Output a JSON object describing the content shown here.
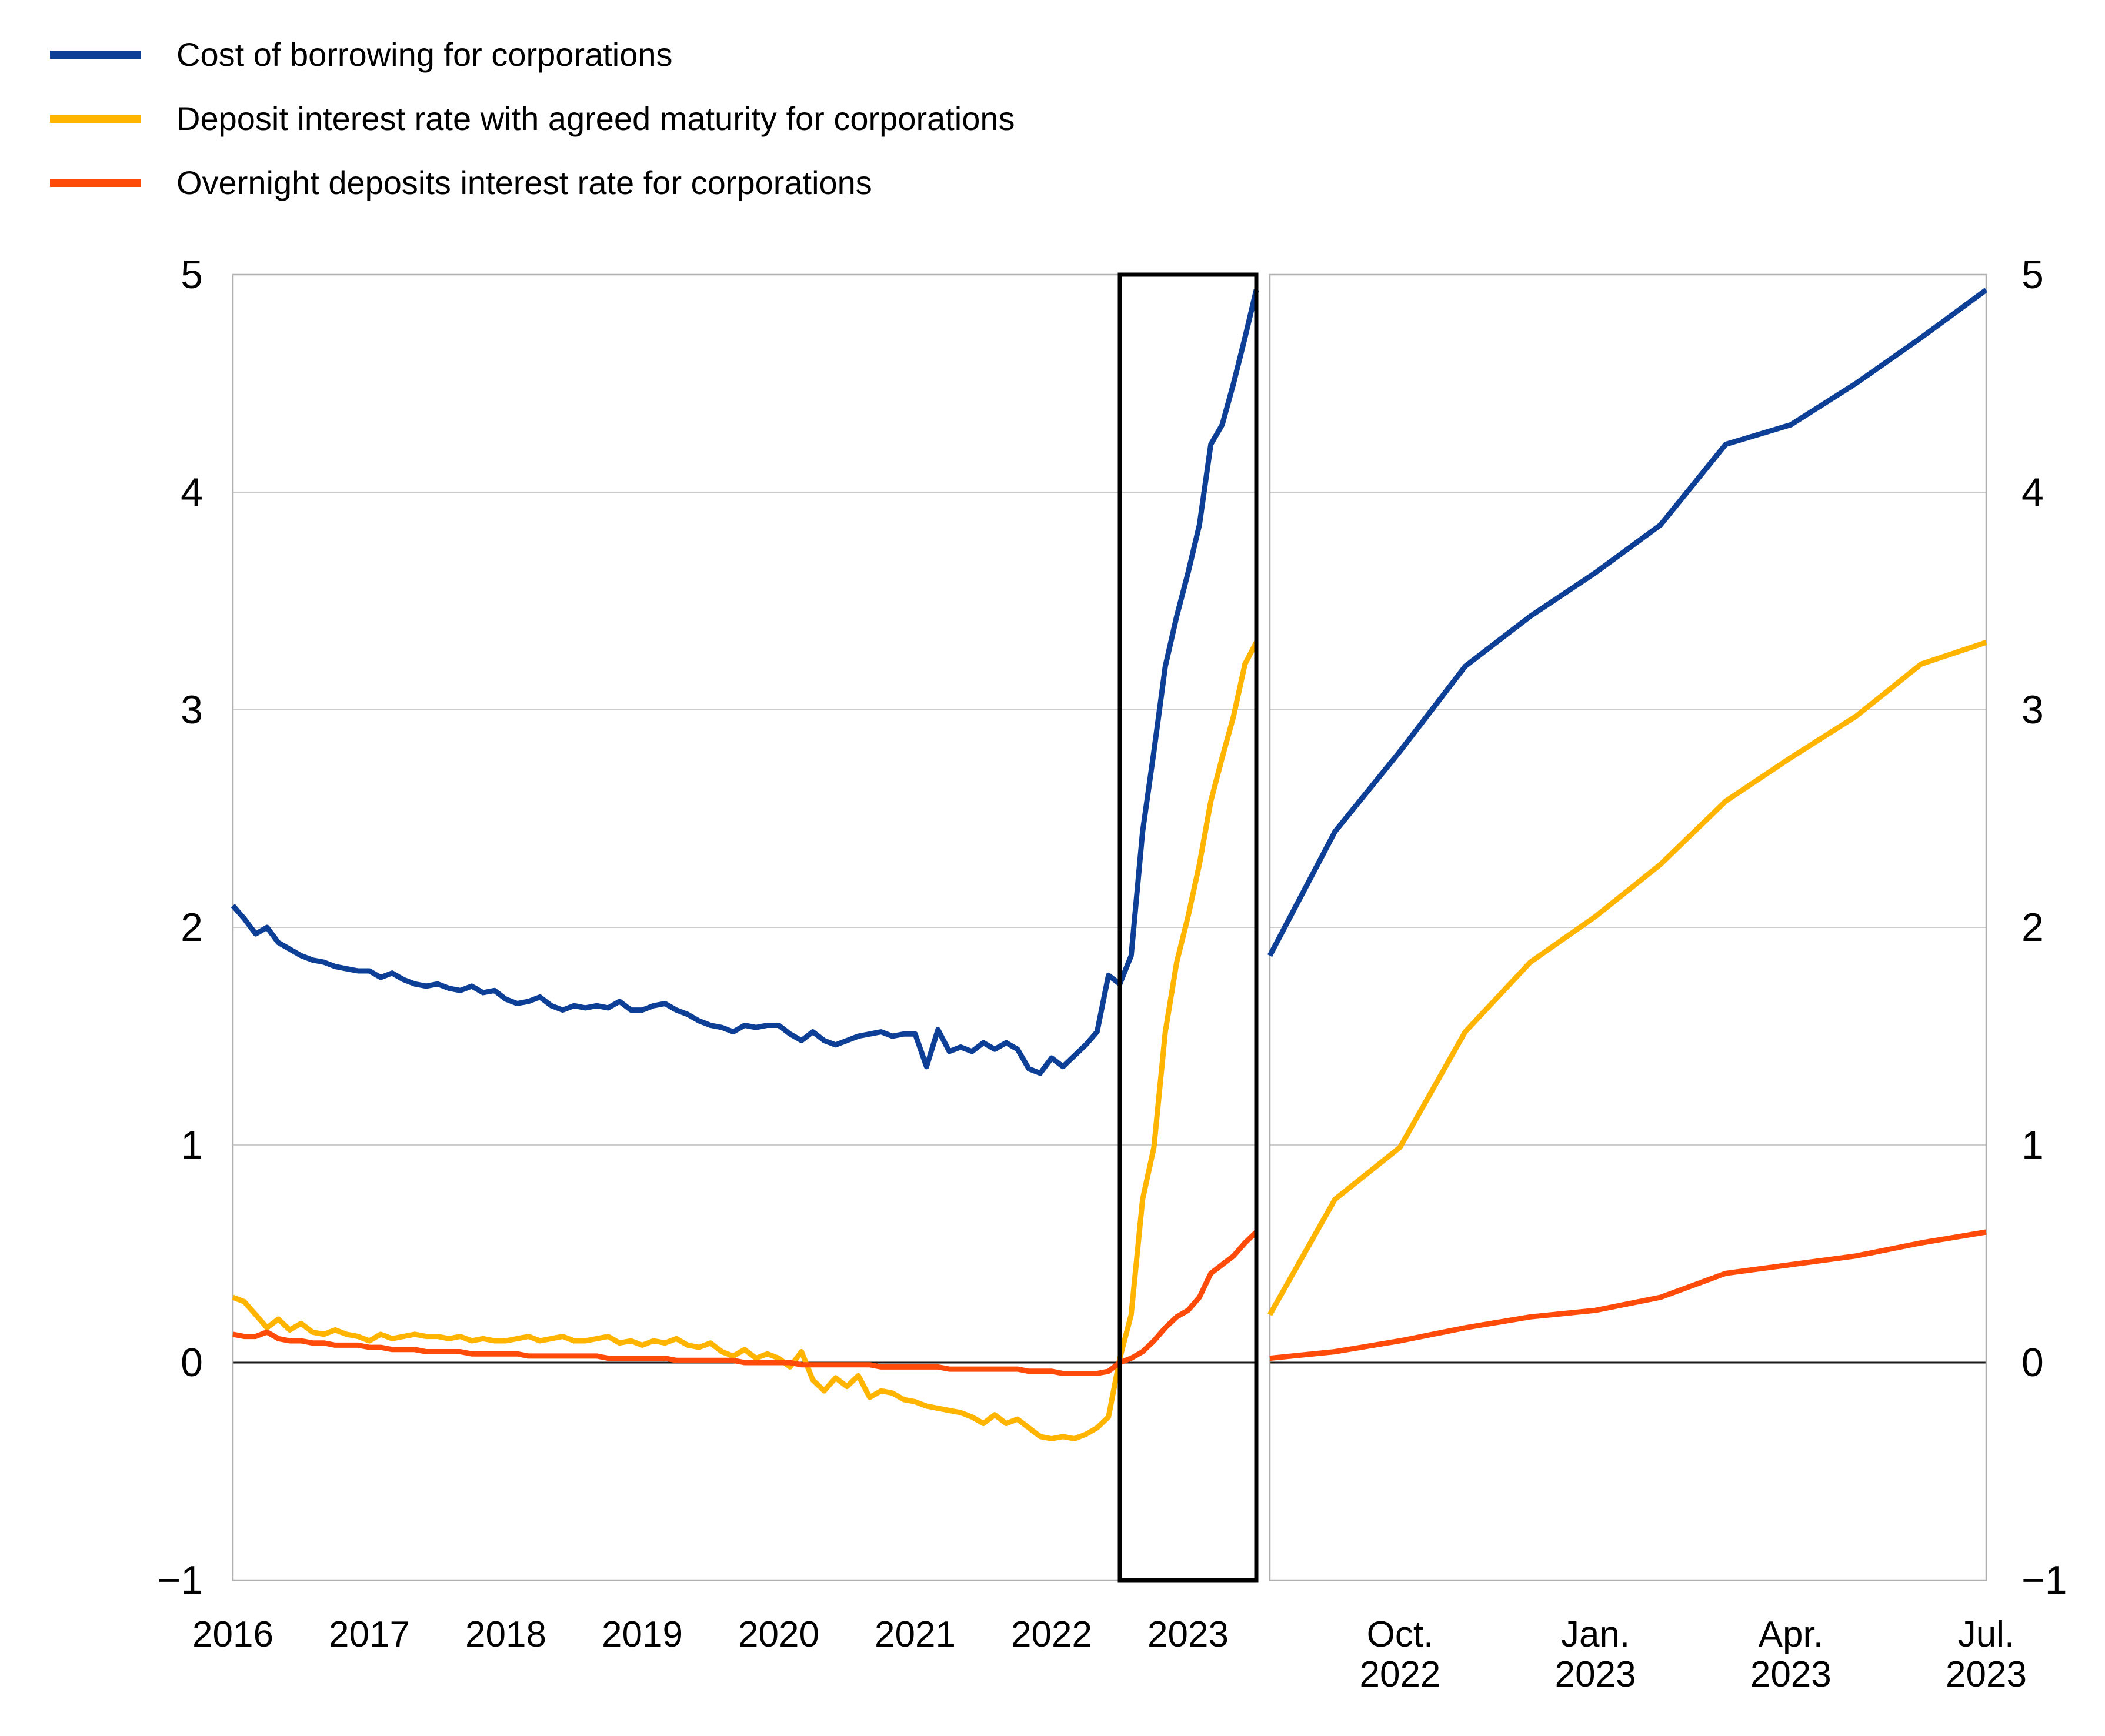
{
  "figure": {
    "kind": "two-panel line chart with zoom highlight",
    "background_color": "#ffffff",
    "text_color": "#000000",
    "gridline_color": "#cccccc",
    "panel_border_color": "#b0b0b0",
    "zero_line_color": "#1a1a1a",
    "highlight_box_color": "#000000"
  },
  "y_axis": {
    "min": -1,
    "max": 5,
    "tick_labels": [
      "5",
      "4",
      "3",
      "2",
      "1",
      "0",
      "−1"
    ],
    "tick_values": [
      5,
      4,
      3,
      2,
      1,
      0,
      -1
    ]
  },
  "chart_data": [
    {
      "panel": "left",
      "type": "line",
      "x_start": "2016-01",
      "x_end": "2023-07",
      "frequency": "monthly",
      "n_points": 91,
      "x_tick_labels": [
        "2016",
        "2017",
        "2018",
        "2019",
        "2020",
        "2021",
        "2022",
        "2023"
      ],
      "x_tick_month_index": [
        0,
        12,
        24,
        36,
        48,
        60,
        72,
        84
      ],
      "ylim": [
        -1,
        5
      ],
      "grid": "horizontal integers, zero line darker",
      "legend_position": "top-left above chart",
      "highlight_box": {
        "from": "2022-07",
        "to": "2023-07",
        "note": "black rectangle marking region magnified in right panel"
      },
      "series": [
        {
          "id": "cost-of-borrowing",
          "name": "Cost of borrowing for corporations",
          "color": "#0d3f97",
          "values": [
            2.1,
            2.04,
            1.97,
            2.0,
            1.93,
            1.9,
            1.87,
            1.85,
            1.84,
            1.82,
            1.81,
            1.8,
            1.8,
            1.77,
            1.79,
            1.76,
            1.74,
            1.73,
            1.74,
            1.72,
            1.71,
            1.73,
            1.7,
            1.71,
            1.67,
            1.65,
            1.66,
            1.68,
            1.64,
            1.62,
            1.64,
            1.63,
            1.64,
            1.63,
            1.66,
            1.62,
            1.62,
            1.64,
            1.65,
            1.62,
            1.6,
            1.57,
            1.55,
            1.54,
            1.52,
            1.55,
            1.54,
            1.55,
            1.55,
            1.51,
            1.48,
            1.52,
            1.48,
            1.46,
            1.48,
            1.5,
            1.51,
            1.52,
            1.5,
            1.51,
            1.51,
            1.36,
            1.53,
            1.43,
            1.45,
            1.43,
            1.47,
            1.44,
            1.47,
            1.44,
            1.35,
            1.33,
            1.4,
            1.36,
            1.41,
            1.46,
            1.52,
            1.78,
            1.74,
            1.87,
            2.44,
            2.81,
            3.2,
            3.43,
            3.63,
            3.85,
            4.22,
            4.31,
            4.5,
            4.71,
            4.93
          ]
        },
        {
          "id": "deposit-agreed-maturity",
          "name": "Deposit interest rate with agreed maturity for corporations",
          "color": "#ffb400",
          "values": [
            0.3,
            0.28,
            0.22,
            0.16,
            0.2,
            0.15,
            0.18,
            0.14,
            0.13,
            0.15,
            0.13,
            0.12,
            0.1,
            0.13,
            0.11,
            0.12,
            0.13,
            0.12,
            0.12,
            0.11,
            0.12,
            0.1,
            0.11,
            0.1,
            0.1,
            0.11,
            0.12,
            0.1,
            0.11,
            0.12,
            0.1,
            0.1,
            0.11,
            0.12,
            0.09,
            0.1,
            0.08,
            0.1,
            0.09,
            0.11,
            0.08,
            0.07,
            0.09,
            0.05,
            0.03,
            0.06,
            0.02,
            0.04,
            0.02,
            -0.02,
            0.05,
            -0.08,
            -0.13,
            -0.07,
            -0.11,
            -0.06,
            -0.16,
            -0.13,
            -0.14,
            -0.17,
            -0.18,
            -0.2,
            -0.21,
            -0.22,
            -0.23,
            -0.25,
            -0.28,
            -0.24,
            -0.28,
            -0.26,
            -0.3,
            -0.34,
            -0.35,
            -0.34,
            -0.35,
            -0.33,
            -0.3,
            -0.25,
            0.02,
            0.22,
            0.75,
            0.99,
            1.52,
            1.84,
            2.05,
            2.29,
            2.58,
            2.78,
            2.97,
            3.21,
            3.31
          ]
        },
        {
          "id": "overnight-deposits",
          "name": "Overnight deposits interest rate for corporations",
          "color": "#ff4b0a",
          "values": [
            0.13,
            0.12,
            0.12,
            0.14,
            0.11,
            0.1,
            0.1,
            0.09,
            0.09,
            0.08,
            0.08,
            0.08,
            0.07,
            0.07,
            0.06,
            0.06,
            0.06,
            0.05,
            0.05,
            0.05,
            0.05,
            0.04,
            0.04,
            0.04,
            0.04,
            0.04,
            0.03,
            0.03,
            0.03,
            0.03,
            0.03,
            0.03,
            0.03,
            0.02,
            0.02,
            0.02,
            0.02,
            0.02,
            0.02,
            0.01,
            0.01,
            0.01,
            0.01,
            0.01,
            0.01,
            0.0,
            0.0,
            0.0,
            0.0,
            0.0,
            -0.01,
            -0.01,
            -0.01,
            -0.01,
            -0.01,
            -0.01,
            -0.01,
            -0.02,
            -0.02,
            -0.02,
            -0.02,
            -0.02,
            -0.02,
            -0.03,
            -0.03,
            -0.03,
            -0.03,
            -0.03,
            -0.03,
            -0.03,
            -0.04,
            -0.04,
            -0.04,
            -0.05,
            -0.05,
            -0.05,
            -0.05,
            -0.04,
            0.0,
            0.02,
            0.05,
            0.1,
            0.16,
            0.21,
            0.24,
            0.3,
            0.41,
            0.45,
            0.49,
            0.55,
            0.6
          ]
        }
      ]
    },
    {
      "panel": "right",
      "type": "line",
      "x_start": "2022-08",
      "x_end": "2023-07",
      "frequency": "monthly",
      "n_points": 12,
      "x_tick_labels": [
        {
          "line1": "Oct.",
          "line2": "2022",
          "month_index": 2
        },
        {
          "line1": "Jan.",
          "line2": "2023",
          "month_index": 5
        },
        {
          "line1": "Apr.",
          "line2": "2023",
          "month_index": 8
        },
        {
          "line1": "Jul.",
          "line2": "2023",
          "month_index": 11
        }
      ],
      "ylim": [
        -1,
        5
      ],
      "y_tick_side": "right",
      "series": [
        {
          "id": "cost-of-borrowing",
          "name": "Cost of borrowing for corporations",
          "color": "#0d3f97",
          "values": [
            1.87,
            2.44,
            2.81,
            3.2,
            3.43,
            3.63,
            3.85,
            4.22,
            4.31,
            4.5,
            4.71,
            4.93
          ]
        },
        {
          "id": "deposit-agreed-maturity",
          "name": "Deposit interest rate with agreed maturity for corporations",
          "color": "#ffb400",
          "values": [
            0.22,
            0.75,
            0.99,
            1.52,
            1.84,
            2.05,
            2.29,
            2.58,
            2.78,
            2.97,
            3.21,
            3.31
          ]
        },
        {
          "id": "overnight-deposits",
          "name": "Overnight deposits interest rate for corporations",
          "color": "#ff4b0a",
          "values": [
            0.02,
            0.05,
            0.1,
            0.16,
            0.21,
            0.24,
            0.3,
            0.41,
            0.45,
            0.49,
            0.55,
            0.6
          ]
        }
      ]
    }
  ]
}
